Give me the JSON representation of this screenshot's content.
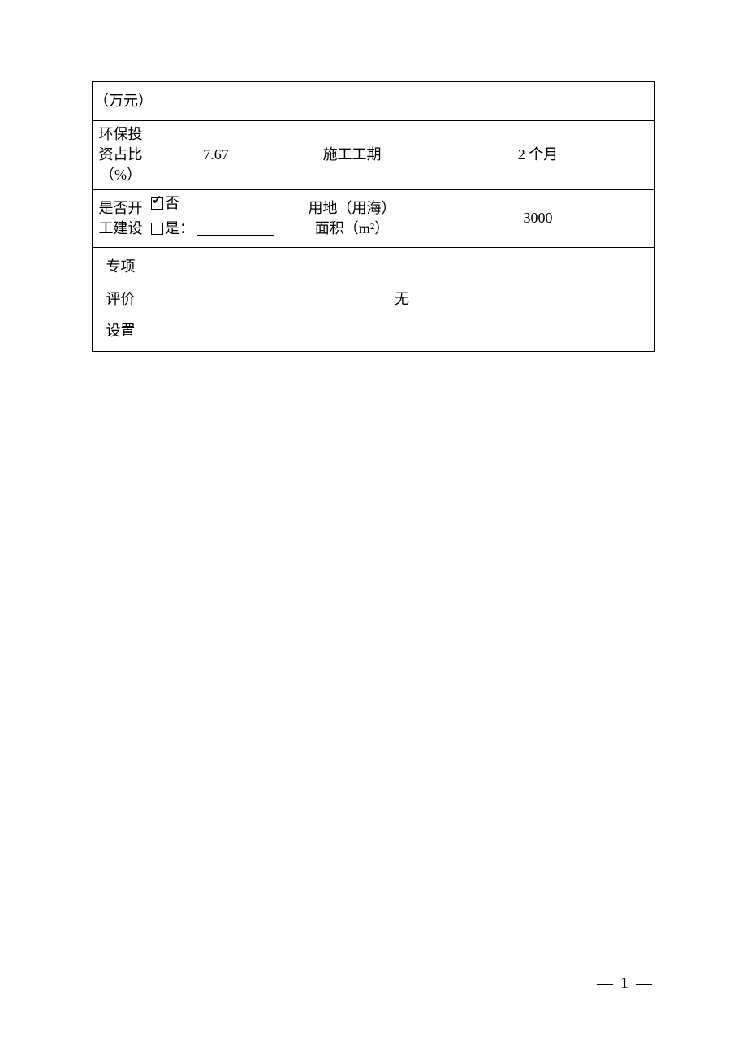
{
  "table": {
    "row1_label": "（万元）",
    "row2_label": "环保投\n资占比\n（%）",
    "row2_value": "7.67",
    "row2_col3": "施工工期",
    "row2_col4": "2 个月",
    "row3_label": "是否开\n工建设",
    "row3_checkbox_no": "否",
    "row3_checkbox_yes": "是：",
    "row3_col3_line1": "用地（用海）",
    "row3_col3_line2": "面积（m²）",
    "row3_col4": "3000",
    "row4_label_line1": "专项",
    "row4_label_line2": "评价",
    "row4_label_line3": "设置",
    "row4_value": "无"
  },
  "page_number": "— 1 —",
  "colors": {
    "border": "#000000",
    "text": "#000000",
    "background": "#ffffff"
  },
  "font_sizes": {
    "cell": 18,
    "page_number": 20
  }
}
